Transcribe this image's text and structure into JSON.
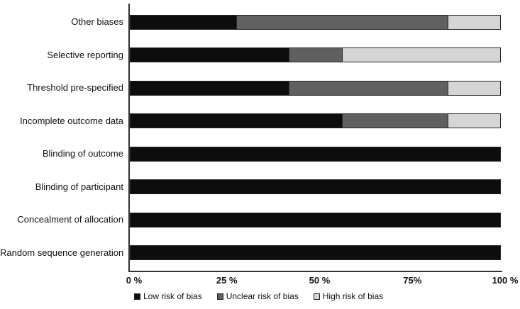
{
  "chart_data": {
    "type": "bar",
    "orientation": "horizontal",
    "stacked": true,
    "unit": "%",
    "title": "",
    "xlabel": "",
    "ylabel": "",
    "xlim": [
      0,
      100
    ],
    "grid": false,
    "legend_position": "bottom",
    "axis_color": "#333333",
    "bar_border_color": "#262626",
    "categories": [
      "Other biases",
      "Selective reporting",
      "Threshold pre-specified",
      "Incomplete outcome data",
      "Blinding of outcome",
      "Blinding of participant",
      "Concealment of allocation",
      "Random sequence generation"
    ],
    "series": [
      {
        "name": "Low risk of bias",
        "color": "#0d0d0d",
        "values": [
          28.57,
          42.86,
          42.86,
          57.14,
          100,
          100,
          100,
          100
        ]
      },
      {
        "name": "Unclear risk of bias",
        "color": "#606060",
        "values": [
          57.14,
          14.29,
          42.86,
          28.57,
          0,
          0,
          0,
          0
        ]
      },
      {
        "name": "High risk of bias",
        "color": "#d5d5d5",
        "values": [
          14.29,
          42.86,
          14.29,
          14.29,
          0,
          0,
          0,
          0
        ]
      }
    ],
    "x_ticks": [
      {
        "label": "0 %",
        "value": 0
      },
      {
        "label": "25 %",
        "value": 25
      },
      {
        "label": "50 %",
        "value": 50
      },
      {
        "label": "75%",
        "value": 75
      },
      {
        "label": "100 %",
        "value": 100
      }
    ]
  }
}
